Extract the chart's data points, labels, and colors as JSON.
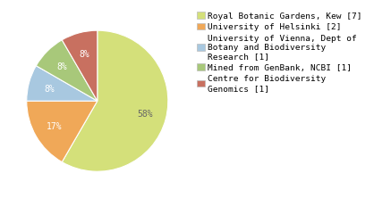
{
  "slices": [
    7,
    2,
    1,
    1,
    1
  ],
  "colors": [
    "#d4e07a",
    "#f0a858",
    "#a8c8e0",
    "#a8c87a",
    "#c87060"
  ],
  "labels": [
    "Royal Botanic Gardens, Kew [7]",
    "University of Helsinki [2]",
    "University of Vienna, Dept of\nBotany and Biodiversity\nResearch [1]",
    "Mined from GenBank, NCBI [1]",
    "Centre for Biodiversity\nGenomics [1]"
  ],
  "background_color": "#ffffff",
  "startangle": 90,
  "legend_fontsize": 6.8,
  "autopct_fontsize": 7.0,
  "pct_label_color_large": "#666666",
  "pct_label_color_small": "white"
}
